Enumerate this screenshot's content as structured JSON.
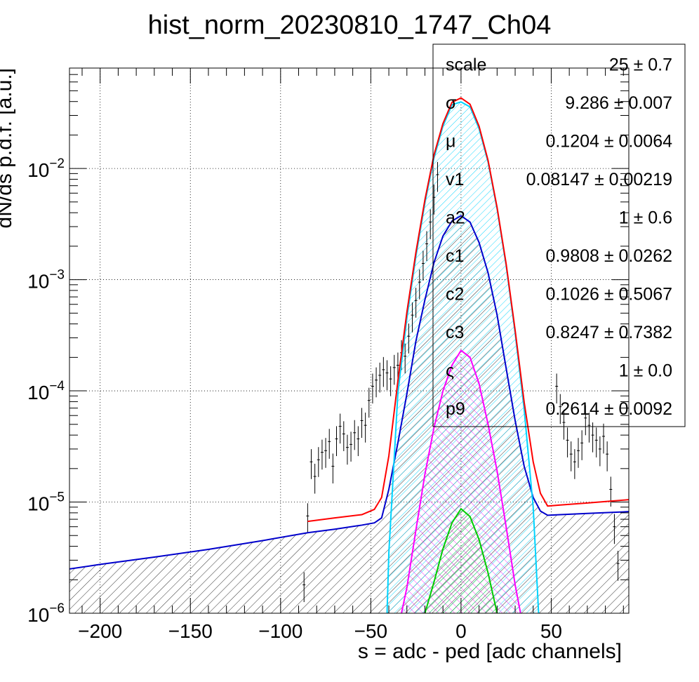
{
  "chart_data": {
    "type": "line",
    "title": "hist_norm_20230810_1747_Ch04",
    "xlabel": "s = adc - ped [adc channels]",
    "ylabel": "dN/ds p.d.f. [a.u.]",
    "xlim": [
      -217,
      93
    ],
    "ylim": [
      1e-06,
      0.08
    ],
    "y_scale": "log",
    "grid": true,
    "x_ticks": [
      -200,
      -150,
      -100,
      -50,
      0,
      50
    ],
    "x_tick_labels": [
      "−200",
      "−150",
      "−100",
      "−50",
      "0",
      "50"
    ],
    "y_ticks": [
      {
        "value": 1e-06,
        "base": "10",
        "exp": "−6"
      },
      {
        "value": 1e-05,
        "base": "10",
        "exp": "−5"
      },
      {
        "value": 0.0001,
        "base": "10",
        "exp": "−4"
      },
      {
        "value": 0.001,
        "base": "10",
        "exp": "−3"
      },
      {
        "value": 0.01,
        "base": "10",
        "exp": "−2"
      }
    ],
    "stats_box": {
      "position": "top-right",
      "rows": [
        {
          "label": "scale",
          "value": "25 ± 0.7"
        },
        {
          "label": "σ",
          "value": "9.286 ± 0.007"
        },
        {
          "label": "μ",
          "value": "0.1204 ± 0.0064"
        },
        {
          "label": "v1",
          "value": "0.08147 ± 0.00219"
        },
        {
          "label": "a2",
          "value": "1 ± 0.6"
        },
        {
          "label": "c1",
          "value": "0.9808 ± 0.0262"
        },
        {
          "label": "c2",
          "value": "0.1026 ± 0.5067"
        },
        {
          "label": "c3",
          "value": "0.8247 ± 0.7382"
        },
        {
          "label": "ς",
          "value": "1 ± 0.0"
        },
        {
          "label": "p9",
          "value": "0.2614 ± 0.0092"
        }
      ]
    },
    "series": [
      {
        "color": "#ff0000",
        "kind": "total_fit",
        "x": [
          -85,
          -70,
          -55,
          -48,
          -44,
          -40,
          -35,
          -30,
          -25,
          -20,
          -15,
          -10,
          -5,
          0,
          5,
          10,
          15,
          20,
          25,
          30,
          35,
          40,
          44,
          48,
          55,
          70,
          93
        ],
        "y": [
          6.7e-06,
          7.2e-06,
          7.7e-06,
          8.6e-06,
          1.1e-05,
          2.6e-05,
          0.000122,
          0.00051,
          0.00176,
          0.00523,
          0.0132,
          0.0254,
          0.0394,
          0.0431,
          0.0378,
          0.024,
          0.0118,
          0.00445,
          0.00139,
          0.00035,
          7.9e-05,
          2.3e-05,
          1.2e-05,
          9.2e-06,
          9.4e-06,
          9.8e-06,
          1.05e-05
        ]
      },
      {
        "color": "#00d4ff",
        "kind": "gaussian_hatched",
        "x": [
          -41,
          -40,
          -35,
          -30,
          -25,
          -20,
          -15,
          -10,
          -5,
          0,
          5,
          10,
          15,
          20,
          25,
          30,
          35,
          40,
          43
        ],
        "y": [
          1e-06,
          3.5e-06,
          9.5e-05,
          0.00045,
          0.00162,
          0.0049,
          0.0124,
          0.0241,
          0.0374,
          0.0397,
          0.0358,
          0.0228,
          0.0114,
          0.00432,
          0.00134,
          0.00033,
          6.8e-05,
          9e-06,
          1e-06
        ]
      },
      {
        "color": "#0000cc",
        "kind": "component_hatched",
        "x": [
          -217,
          -200,
          -170,
          -140,
          -110,
          -85,
          -70,
          -55,
          -48,
          -44,
          -40,
          -35,
          -30,
          -25,
          -20,
          -15,
          -10,
          -5,
          0,
          5,
          10,
          15,
          20,
          25,
          30,
          35,
          40,
          44,
          48,
          55,
          70,
          93
        ],
        "y": [
          2.5e-06,
          2.75e-06,
          3.2e-06,
          3.75e-06,
          4.5e-06,
          5.3e-06,
          5.7e-06,
          6.2e-06,
          6.5e-06,
          7.2e-06,
          1.3e-05,
          3.4e-05,
          9.4e-05,
          0.00028,
          0.00066,
          0.00142,
          0.00247,
          0.00337,
          0.00376,
          0.00329,
          0.00216,
          0.00115,
          0.00048,
          0.00016,
          5.4e-05,
          2.1e-05,
          1.1e-05,
          8.3e-06,
          7.6e-06,
          7.7e-06,
          7.9e-06,
          8.2e-06
        ]
      },
      {
        "color": "#ff00ff",
        "kind": "component_hatched",
        "x": [
          -33,
          -30,
          -25,
          -20,
          -15,
          -10,
          -5,
          0,
          5,
          10,
          15,
          20,
          25,
          30,
          33
        ],
        "y": [
          1e-06,
          1.7e-06,
          5.6e-06,
          1.78e-05,
          4.65e-05,
          0.0001,
          0.00017,
          0.000231,
          0.0002,
          0.000116,
          5e-05,
          1.9e-05,
          6e-06,
          1.8e-06,
          1e-06
        ]
      },
      {
        "color": "#00cc00",
        "kind": "component_hatched",
        "x": [
          -20,
          -15,
          -10,
          -5,
          0,
          5,
          10,
          15,
          20
        ],
        "y": [
          1e-06,
          1.9e-06,
          3.8e-06,
          6.5e-06,
          8.7e-06,
          7.4e-06,
          4.6e-06,
          2.3e-06,
          1e-06
        ]
      }
    ],
    "data_points": {
      "color": "#000000",
      "x": [
        -87,
        -85,
        -83,
        -81,
        -79,
        -77,
        -75,
        -73,
        -71,
        -69,
        -67,
        -65,
        -63,
        -61,
        -59,
        -57,
        -55,
        -53,
        -51,
        -49,
        -47,
        -45,
        -43,
        -41,
        -39,
        -37,
        -35,
        -33,
        -31,
        -29,
        -27,
        -25,
        -23,
        -21,
        -19,
        -17,
        -15,
        -13,
        53,
        55,
        57,
        59,
        61,
        63,
        65,
        67,
        69,
        71,
        73,
        75,
        77,
        79,
        81,
        83,
        85,
        87
      ],
      "y": [
        1.8e-06,
        7.5e-06,
        2.3e-05,
        1.7e-05,
        2.4e-05,
        2.8e-05,
        2.9e-05,
        3.5e-05,
        2.1e-05,
        3.7e-05,
        4.8e-05,
        4.1e-05,
        3.1e-05,
        3.3e-05,
        4.2e-05,
        3.7e-05,
        5.4e-05,
        4.9e-05,
        8.2e-05,
        0.00011,
        0.000125,
        0.000138,
        0.000155,
        0.000145,
        0.000128,
        0.000162,
        0.00017,
        0.00022,
        0.000205,
        0.00031,
        0.00048,
        0.00065,
        0.00095,
        0.0014,
        0.0021,
        0.0033,
        0.0055,
        0.0088,
        0.00011,
        7.2e-05,
        5.2e-05,
        3.6e-05,
        2.7e-05,
        2.3e-05,
        2.9e-05,
        3.4e-05,
        5.7e-05,
        4.9e-05,
        4e-05,
        3.6e-05,
        3e-05,
        3.9e-05,
        2.7e-05,
        1.3e-05,
        6e-06,
        2.8e-06
      ]
    }
  }
}
